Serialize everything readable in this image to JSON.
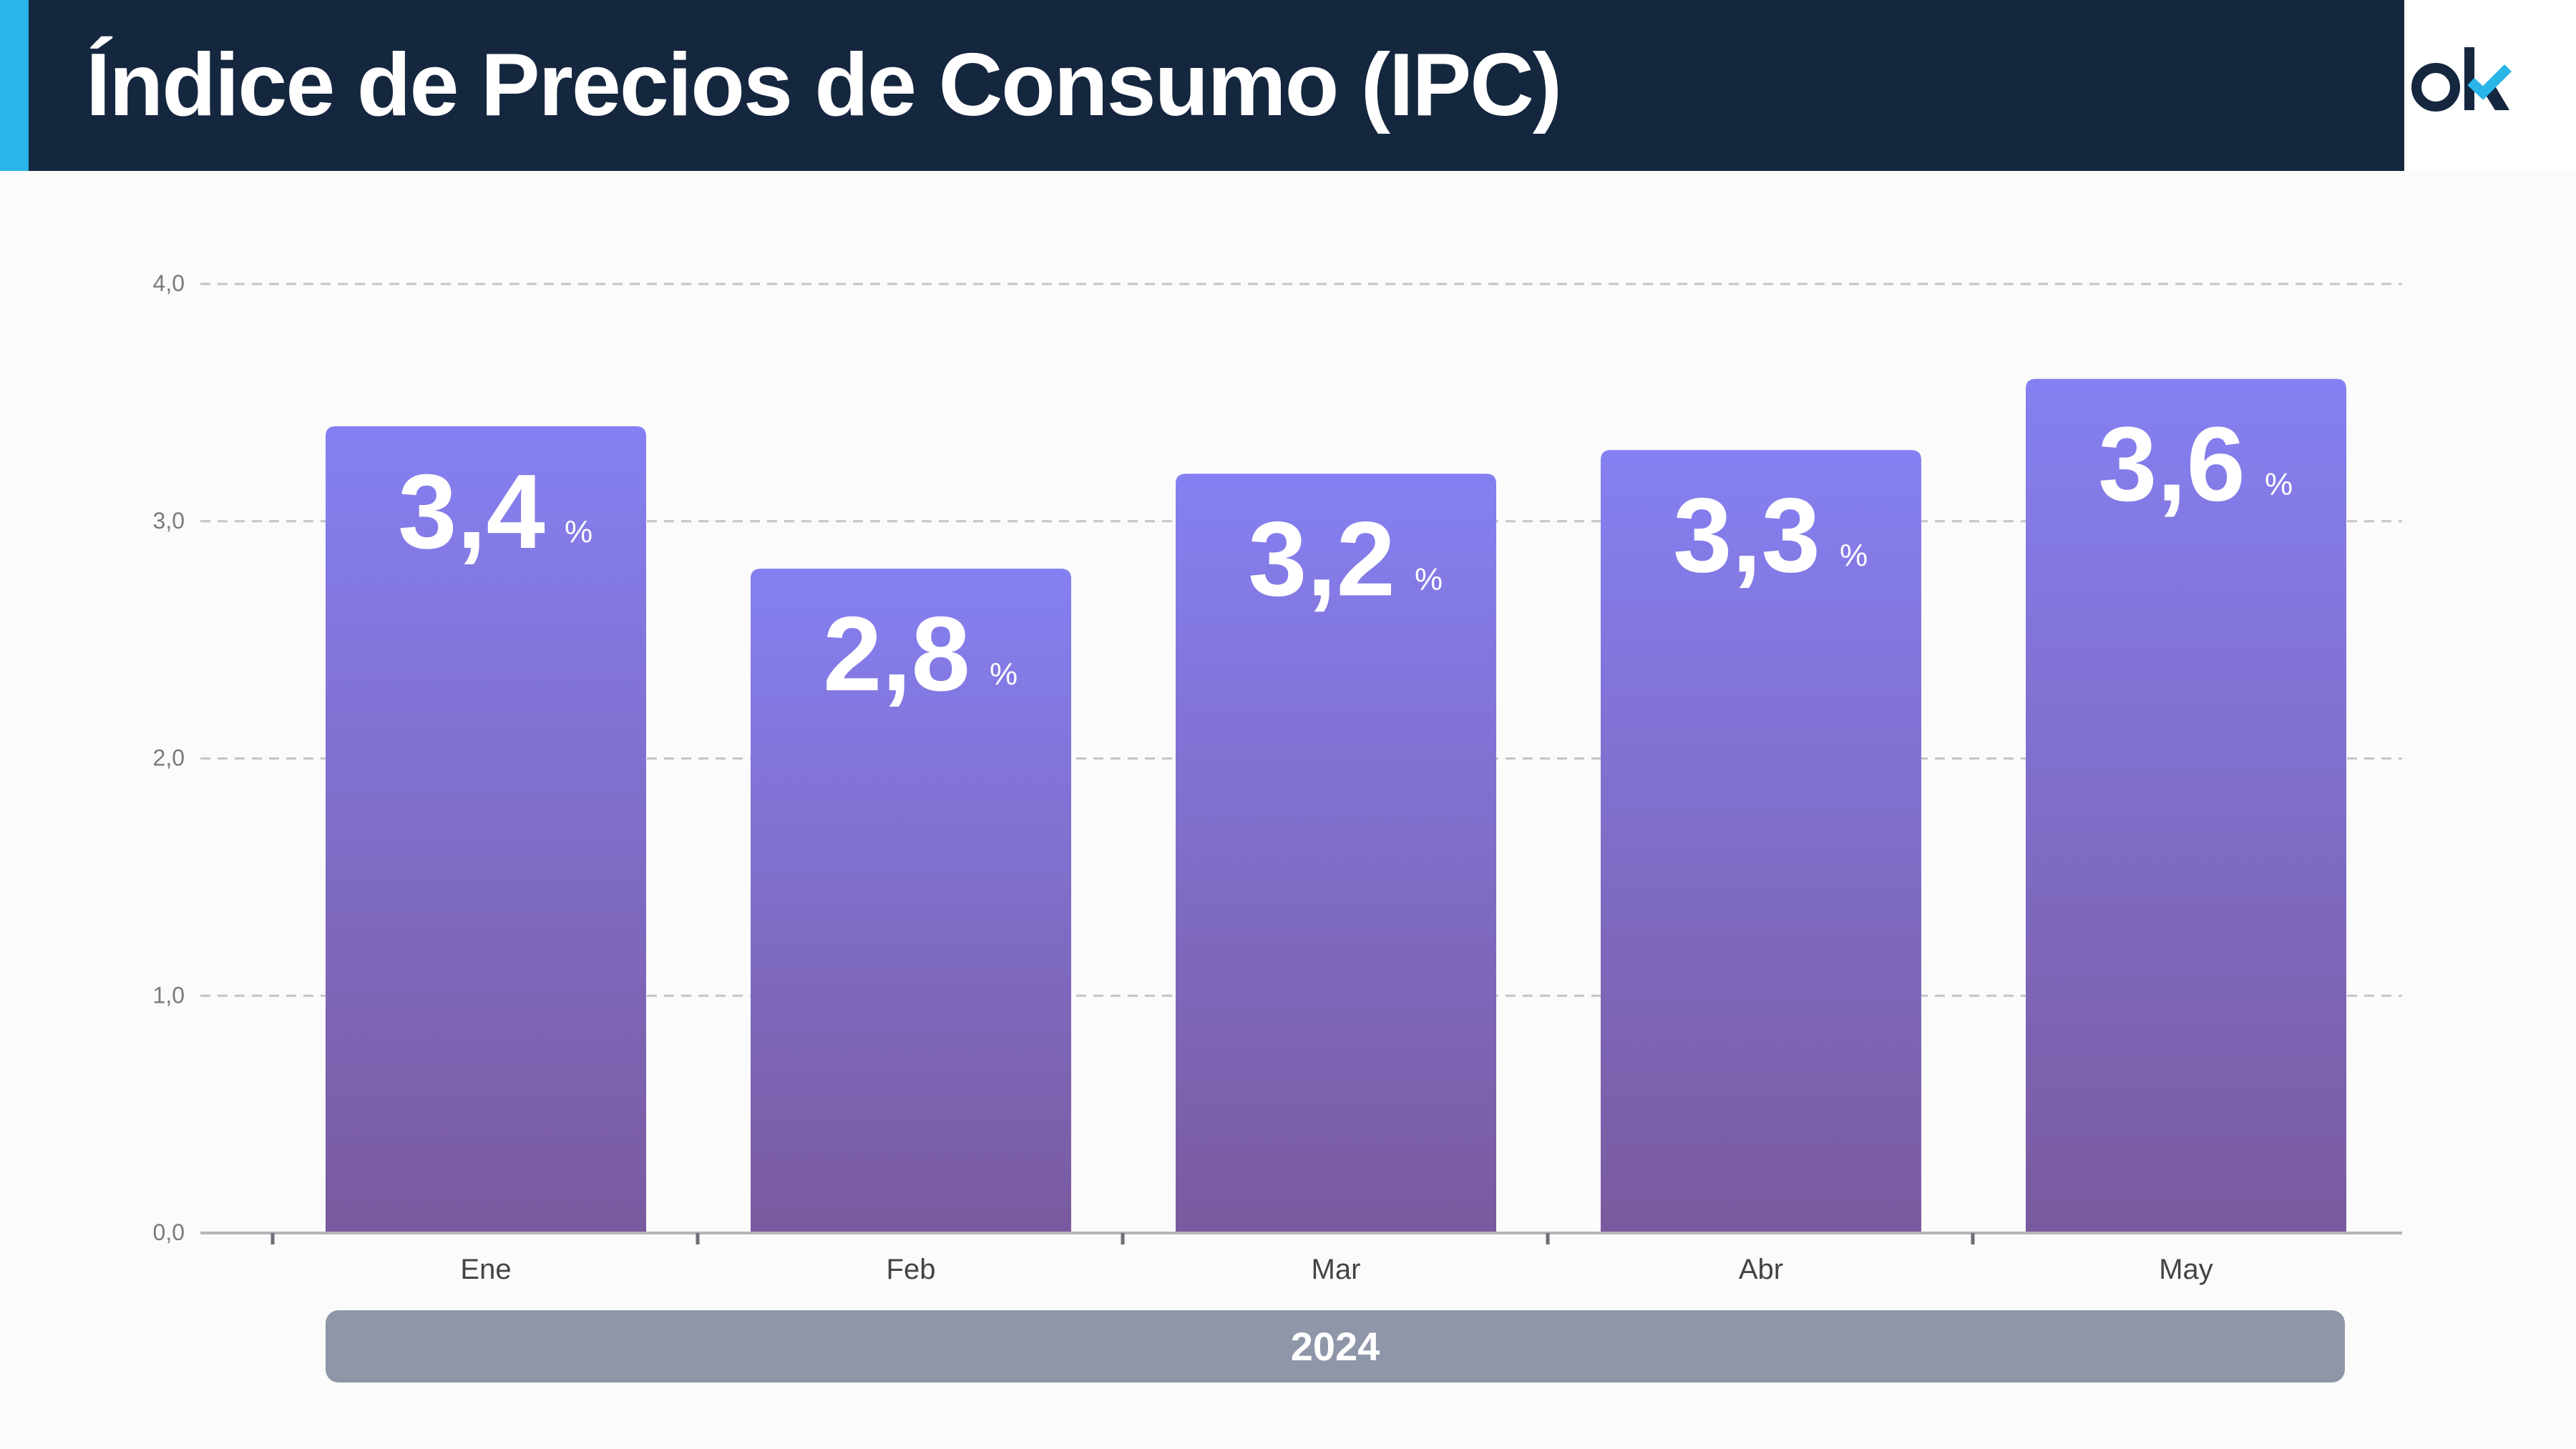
{
  "header": {
    "title": "Índice de Precios de Consumo (IPC)",
    "logo_text": "ok"
  },
  "colors": {
    "header_bg": "#15263f",
    "accent": "#29b5e8",
    "bar_top": "#8580f2",
    "bar_bottom": "#7a5a9e",
    "year_band": "#8e96a8"
  },
  "chart_data": {
    "type": "bar",
    "title": "Índice de Precios de Consumo (IPC)",
    "categories": [
      "Ene",
      "Feb",
      "Mar",
      "Abr",
      "May"
    ],
    "values": [
      3.4,
      2.8,
      3.2,
      3.3,
      3.6
    ],
    "value_labels": [
      "3,4",
      "2,8",
      "3,2",
      "3,3",
      "3,6"
    ],
    "value_suffix": "%",
    "group_label": "2024",
    "ylim": [
      0,
      4
    ],
    "yticks": [
      0,
      1,
      2,
      3,
      4
    ],
    "ytick_labels": [
      "0,0",
      "1,0",
      "2,0",
      "3,0",
      "4,0"
    ],
    "xlabel": "",
    "ylabel": "",
    "grid": true
  }
}
